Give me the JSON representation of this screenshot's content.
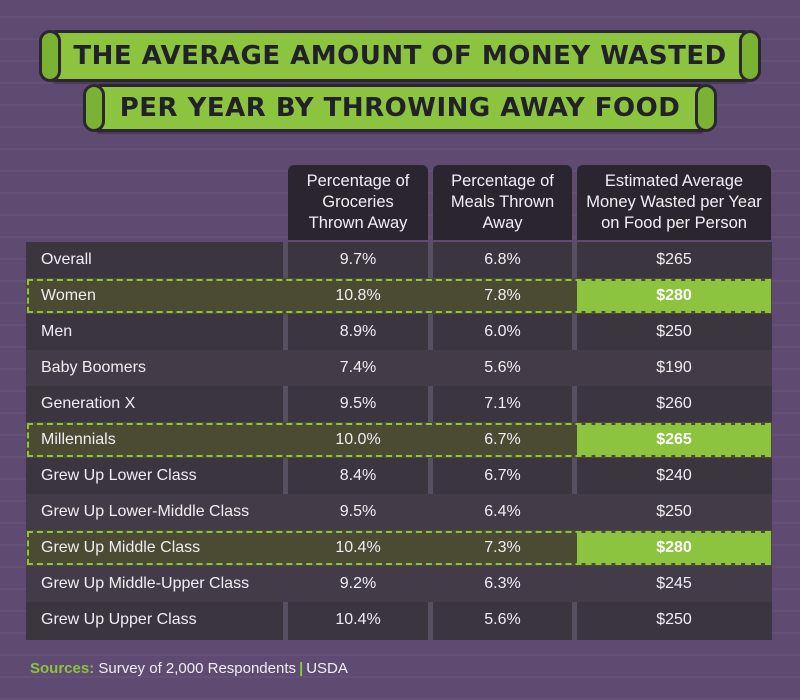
{
  "title": {
    "line1": "THE AVERAGE AMOUNT OF MONEY WASTED",
    "line2": "PER YEAR BY THROWING AWAY FOOD"
  },
  "colors": {
    "background": "#5f4b72",
    "accent": "#8cc33f",
    "header": "#2a252f",
    "row": "#3b3540"
  },
  "chart_data": {
    "type": "table",
    "title": "The Average Amount of Money Wasted per Year by Throwing Away Food",
    "columns": [
      "",
      "Percentage of Groceries Thrown Away",
      "Percentage of Meals Thrown Away",
      "Estimated Average Money Wasted per Year on Food per Person"
    ],
    "rows": [
      {
        "label": "Overall",
        "groceries": "9.7%",
        "meals": "6.8%",
        "money": "$265",
        "highlight": false
      },
      {
        "label": "Women",
        "groceries": "10.8%",
        "meals": "7.8%",
        "money": "$280",
        "highlight": true
      },
      {
        "label": "Men",
        "groceries": "8.9%",
        "meals": "6.0%",
        "money": "$250",
        "highlight": false
      },
      {
        "label": "Baby Boomers",
        "groceries": "7.4%",
        "meals": "5.6%",
        "money": "$190",
        "highlight": false
      },
      {
        "label": "Generation X",
        "groceries": "9.5%",
        "meals": "7.1%",
        "money": "$260",
        "highlight": false
      },
      {
        "label": "Millennials",
        "groceries": "10.0%",
        "meals": "6.7%",
        "money": "$265",
        "highlight": true
      },
      {
        "label": "Grew Up Lower Class",
        "groceries": "8.4%",
        "meals": "6.7%",
        "money": "$240",
        "highlight": false
      },
      {
        "label": "Grew Up Lower-Middle Class",
        "groceries": "9.5%",
        "meals": "6.4%",
        "money": "$250",
        "highlight": false
      },
      {
        "label": "Grew Up Middle Class",
        "groceries": "10.4%",
        "meals": "7.3%",
        "money": "$280",
        "highlight": true
      },
      {
        "label": "Grew Up Middle-Upper Class",
        "groceries": "9.2%",
        "meals": "6.3%",
        "money": "$245",
        "highlight": false
      },
      {
        "label": "Grew Up Upper Class",
        "groceries": "10.4%",
        "meals": "5.6%",
        "money": "$250",
        "highlight": false
      }
    ]
  },
  "sources": {
    "label": "Sources:",
    "items": [
      "Survey of 2,000 Respondents",
      "USDA"
    ],
    "separator": "|"
  }
}
